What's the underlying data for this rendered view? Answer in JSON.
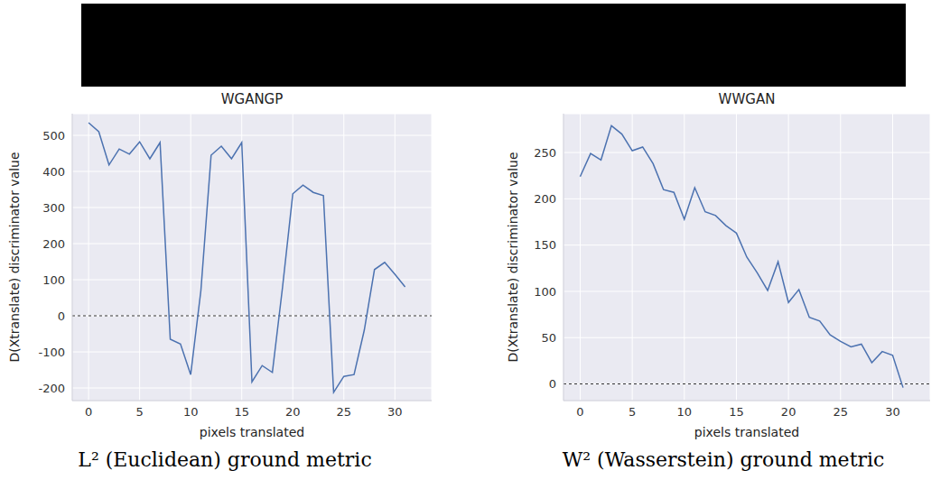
{
  "chart_data": [
    {
      "type": "line",
      "title": "WGANGP",
      "x_label": "pixels translated",
      "y_label": "D(Xtranslate) discriminator value",
      "caption": "L² (Euclidean) ground metric",
      "x": [
        0,
        1,
        2,
        3,
        4,
        5,
        6,
        7,
        8,
        9,
        10,
        11,
        12,
        13,
        14,
        15,
        16,
        17,
        18,
        19,
        20,
        21,
        22,
        23,
        24,
        25,
        26,
        27,
        28,
        29,
        30,
        31
      ],
      "values": [
        535,
        510,
        418,
        462,
        448,
        482,
        435,
        480,
        -65,
        -78,
        -163,
        70,
        445,
        470,
        435,
        480,
        -183,
        -138,
        -157,
        80,
        338,
        362,
        342,
        333,
        -212,
        -168,
        -163,
        -40,
        128,
        148,
        115,
        80
      ],
      "color": "#4c72b0",
      "xlim": [
        -1.6,
        33.6
      ],
      "xticks": [
        0,
        5,
        10,
        15,
        20,
        25,
        30
      ],
      "ylim": [
        -235,
        560
      ],
      "yticks": [
        -200,
        -100,
        0,
        100,
        200,
        300,
        400,
        500
      ],
      "grid": true,
      "hline": 0
    },
    {
      "type": "line",
      "title": "WWGAN",
      "x_label": "pixels translated",
      "y_label": "D(Xtranslate) discriminator value",
      "caption": "W² (Wasserstein) ground metric",
      "x": [
        0,
        1,
        2,
        3,
        4,
        5,
        6,
        7,
        8,
        9,
        10,
        11,
        12,
        13,
        14,
        15,
        16,
        17,
        18,
        19,
        20,
        21,
        22,
        23,
        24,
        25,
        26,
        27,
        28,
        29,
        30,
        31
      ],
      "values": [
        224,
        249,
        242,
        279,
        270,
        252,
        256,
        238,
        210,
        207,
        178,
        212,
        186,
        182,
        171,
        163,
        137,
        120,
        101,
        132,
        88,
        102,
        72,
        68,
        53,
        46,
        40,
        43,
        23,
        35,
        31,
        -4
      ],
      "color": "#4c72b0",
      "xlim": [
        -1.6,
        33.6
      ],
      "xticks": [
        0,
        5,
        10,
        15,
        20,
        25,
        30
      ],
      "ylim": [
        -18,
        292
      ],
      "yticks": [
        0,
        50,
        100,
        150,
        200,
        250
      ],
      "grid": true,
      "hline": 0
    }
  ]
}
